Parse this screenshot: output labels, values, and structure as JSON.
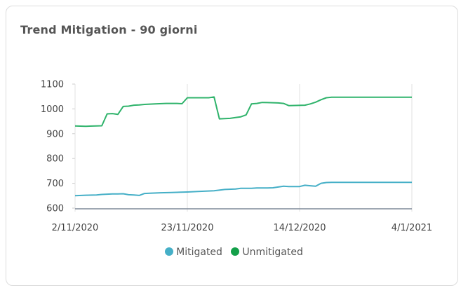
{
  "card": {
    "title": "Trend Mitigation - 90 giorni"
  },
  "chart_data": {
    "type": "line",
    "ylim": [
      600,
      1100
    ],
    "yticks": [
      600,
      700,
      800,
      900,
      1000,
      1100
    ],
    "xlim": [
      "2020-11-02",
      "2021-01-04"
    ],
    "xticks": [
      {
        "date": "2020-11-02",
        "label": "2/11/2020"
      },
      {
        "date": "2020-11-23",
        "label": "23/11/2020"
      },
      {
        "date": "2020-12-14",
        "label": "14/12/2020"
      },
      {
        "date": "2021-01-04",
        "label": "4/1/2021"
      }
    ],
    "grid": "vertical at x ticks",
    "legend_position": "bottom",
    "series": [
      {
        "name": "Mitigated",
        "color": "#45afc7",
        "points": [
          [
            "2020-11-02",
            650
          ],
          [
            "2020-11-04",
            652
          ],
          [
            "2020-11-06",
            653
          ],
          [
            "2020-11-07",
            655
          ],
          [
            "2020-11-09",
            657
          ],
          [
            "2020-11-10",
            657
          ],
          [
            "2020-11-11",
            658
          ],
          [
            "2020-11-12",
            654
          ],
          [
            "2020-11-13",
            653
          ],
          [
            "2020-11-14",
            651
          ],
          [
            "2020-11-15",
            659
          ],
          [
            "2020-11-16",
            660
          ],
          [
            "2020-11-18",
            662
          ],
          [
            "2020-11-20",
            663
          ],
          [
            "2020-11-23",
            665
          ],
          [
            "2020-11-25",
            667
          ],
          [
            "2020-11-28",
            670
          ],
          [
            "2020-11-30",
            675
          ],
          [
            "2020-12-02",
            677
          ],
          [
            "2020-12-03",
            680
          ],
          [
            "2020-12-05",
            680
          ],
          [
            "2020-12-06",
            681
          ],
          [
            "2020-12-08",
            681
          ],
          [
            "2020-12-09",
            682
          ],
          [
            "2020-12-10",
            685
          ],
          [
            "2020-12-11",
            688
          ],
          [
            "2020-12-12",
            687
          ],
          [
            "2020-12-14",
            687
          ],
          [
            "2020-12-15",
            692
          ],
          [
            "2020-12-16",
            690
          ],
          [
            "2020-12-17",
            688
          ],
          [
            "2020-12-18",
            700
          ],
          [
            "2020-12-19",
            703
          ],
          [
            "2020-12-20",
            704
          ],
          [
            "2021-01-04",
            704
          ]
        ]
      },
      {
        "name": "Unmitigated",
        "color": "#2fb36b",
        "points": [
          [
            "2020-11-02",
            931
          ],
          [
            "2020-11-04",
            930
          ],
          [
            "2020-11-07",
            932
          ],
          [
            "2020-11-08",
            980
          ],
          [
            "2020-11-09",
            981
          ],
          [
            "2020-11-10",
            978
          ],
          [
            "2020-11-11",
            1010
          ],
          [
            "2020-11-12",
            1011
          ],
          [
            "2020-11-13",
            1015
          ],
          [
            "2020-11-14",
            1016
          ],
          [
            "2020-11-15",
            1018
          ],
          [
            "2020-11-17",
            1020
          ],
          [
            "2020-11-19",
            1022
          ],
          [
            "2020-11-21",
            1022
          ],
          [
            "2020-11-22",
            1021
          ],
          [
            "2020-11-23",
            1045
          ],
          [
            "2020-11-27",
            1045
          ],
          [
            "2020-11-28",
            1048
          ],
          [
            "2020-11-29",
            960
          ],
          [
            "2020-12-01",
            962
          ],
          [
            "2020-12-02",
            965
          ],
          [
            "2020-12-03",
            968
          ],
          [
            "2020-12-04",
            976
          ],
          [
            "2020-12-05",
            1020
          ],
          [
            "2020-12-06",
            1022
          ],
          [
            "2020-12-07",
            1026
          ],
          [
            "2020-12-09",
            1025
          ],
          [
            "2020-12-10",
            1024
          ],
          [
            "2020-12-11",
            1022
          ],
          [
            "2020-12-12",
            1013
          ],
          [
            "2020-12-15",
            1015
          ],
          [
            "2020-12-16",
            1020
          ],
          [
            "2020-12-17",
            1027
          ],
          [
            "2020-12-18",
            1037
          ],
          [
            "2020-12-19",
            1045
          ],
          [
            "2020-12-20",
            1047
          ],
          [
            "2021-01-04",
            1047
          ]
        ]
      }
    ]
  }
}
